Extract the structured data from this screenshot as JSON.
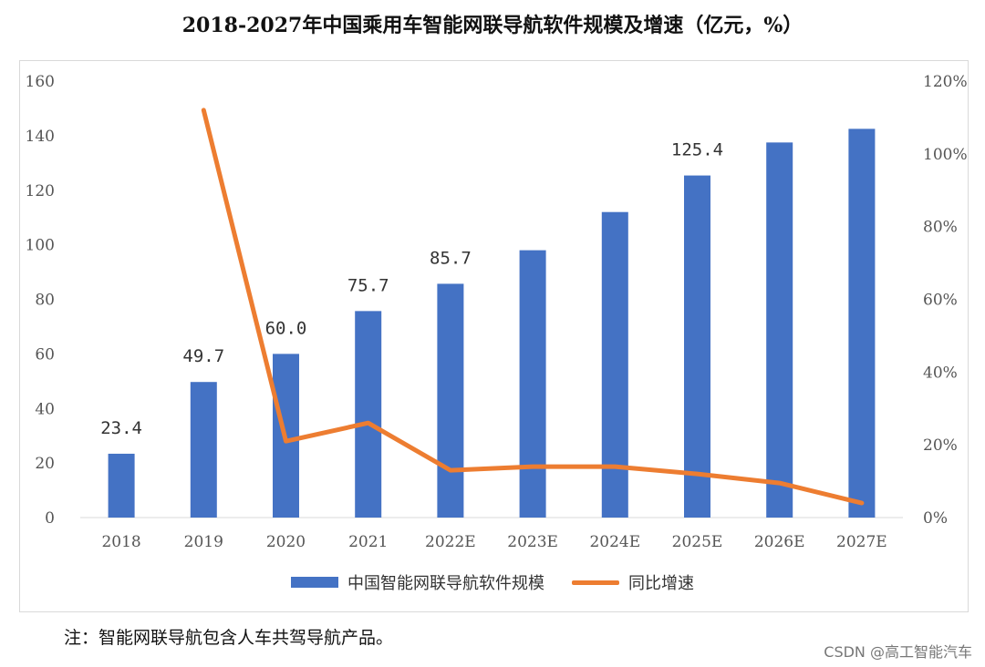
{
  "title": "2018-2027年中国乘用车智能网联导航软件规模及增速（亿元，%）",
  "colors": {
    "bar": "#4472C4",
    "line": "#ED7D31",
    "frame": "#d9d9d9"
  },
  "chart_data": {
    "type": "bar",
    "categories": [
      "2018",
      "2019",
      "2020",
      "2021",
      "2022E",
      "2023E",
      "2024E",
      "2025E",
      "2026E",
      "2027E"
    ],
    "series": [
      {
        "name": "中国智能网联导航软件规模",
        "type": "bar",
        "axis": "left",
        "values": [
          23.4,
          49.7,
          60.0,
          75.7,
          85.7,
          98,
          112,
          125.4,
          137.5,
          142.5
        ]
      },
      {
        "name": "同比增速",
        "type": "line",
        "axis": "right",
        "values": [
          null,
          112,
          21,
          26,
          13,
          14,
          14,
          12,
          9.5,
          4
        ]
      }
    ],
    "data_labels": [
      {
        "index": 0,
        "text": "23.4"
      },
      {
        "index": 1,
        "text": "49.7"
      },
      {
        "index": 2,
        "text": "60.0"
      },
      {
        "index": 3,
        "text": "75.7"
      },
      {
        "index": 4,
        "text": "85.7"
      },
      {
        "index": 7,
        "text": "125.4"
      }
    ],
    "ylim_left": [
      0,
      160
    ],
    "yticks_left": [
      "0",
      "20",
      "40",
      "60",
      "80",
      "100",
      "120",
      "140",
      "160"
    ],
    "ylim_right": [
      0,
      120
    ],
    "yticks_right": [
      "0%",
      "20%",
      "40%",
      "60%",
      "80%",
      "100%",
      "120%"
    ],
    "legend_position": "bottom",
    "grid": false
  },
  "legend": {
    "bar_label": "中国智能网联导航软件规模",
    "line_label": "同比增速"
  },
  "note": "注：智能网联导航包含人车共驾导航产品。",
  "watermark": "CSDN @高工智能汽车"
}
